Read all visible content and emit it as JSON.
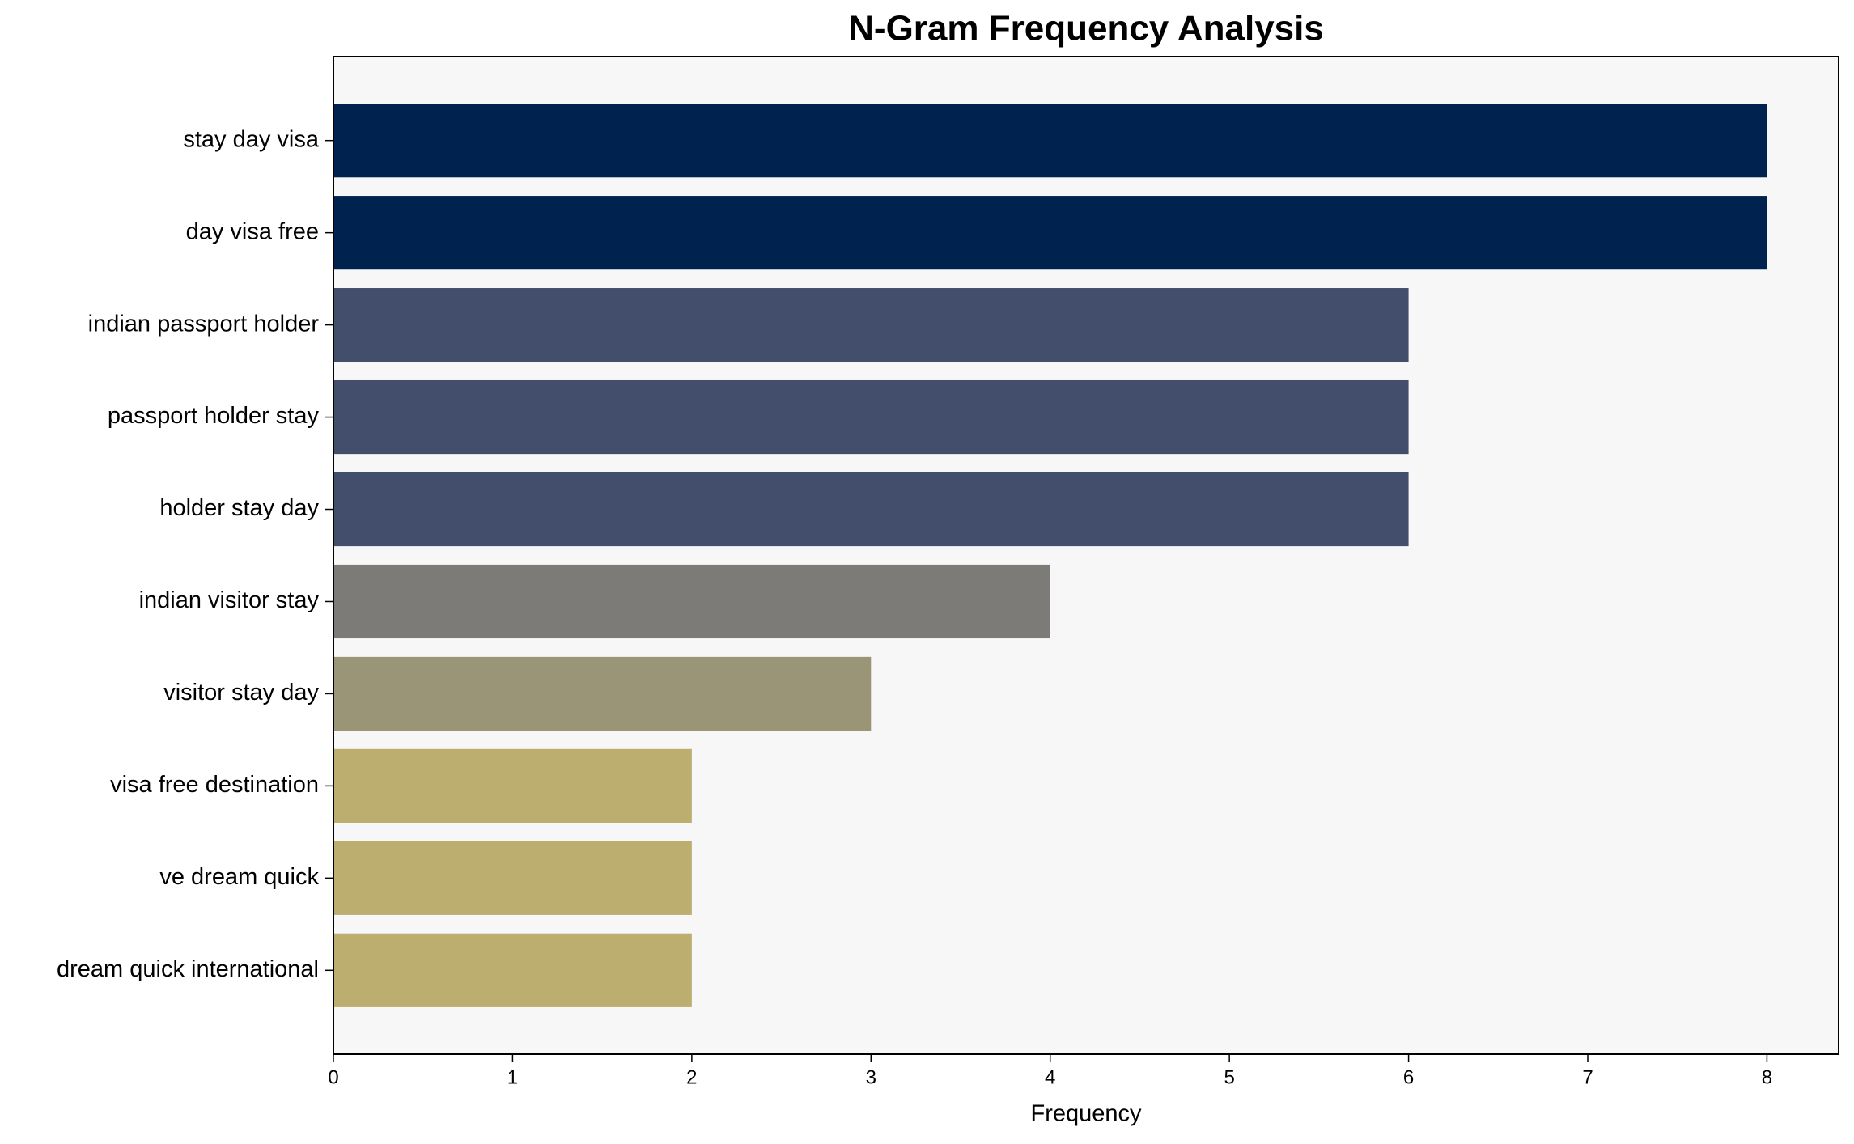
{
  "chart_data": {
    "type": "barh",
    "title": "N-Gram Frequency Analysis",
    "xlabel": "Frequency",
    "categories": [
      "stay day visa",
      "day visa free",
      "indian passport holder",
      "passport holder stay",
      "holder stay day",
      "indian visitor stay",
      "visitor stay day",
      "visa free destination",
      "ve dream quick",
      "dream quick international"
    ],
    "values": [
      8,
      8,
      6,
      6,
      6,
      4,
      3,
      2,
      2,
      2
    ],
    "colors": [
      "#00224e",
      "#00224e",
      "#434e6c",
      "#434e6c",
      "#434e6c",
      "#7c7b78",
      "#9b9577",
      "#bcae6f",
      "#bcae6f",
      "#bcae6f"
    ],
    "xlim": [
      0,
      8.4
    ],
    "xticks": [
      0,
      1,
      2,
      3,
      4,
      5,
      6,
      7,
      8
    ],
    "grid": false
  }
}
